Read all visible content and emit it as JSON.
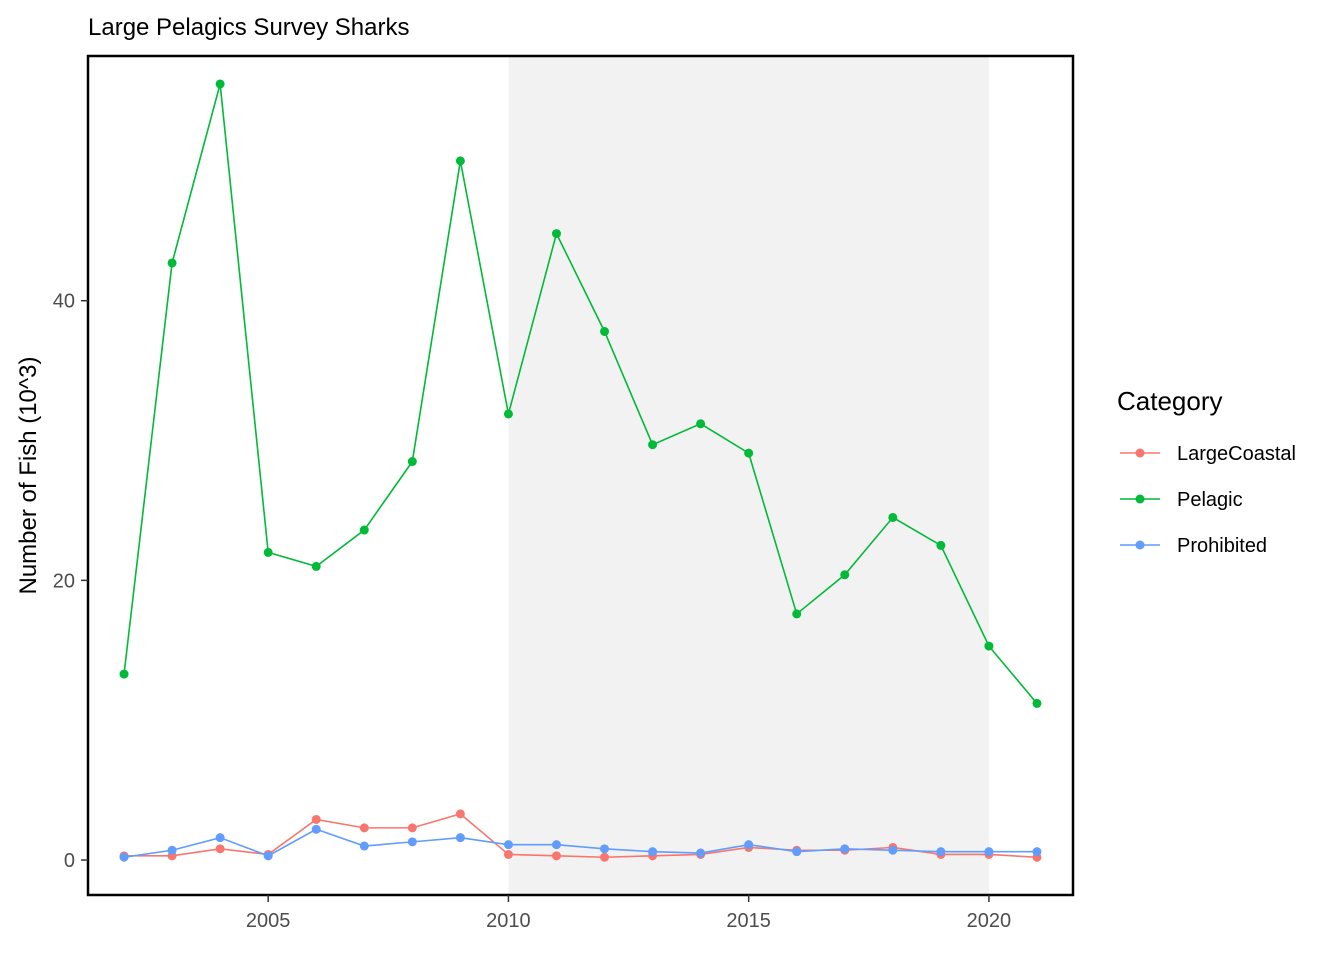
{
  "chart_data": {
    "type": "line",
    "title": "Large Pelagics Survey Sharks",
    "xlabel": "",
    "ylabel": "Number of Fish (10^3)",
    "x": [
      2002,
      2003,
      2004,
      2005,
      2006,
      2007,
      2008,
      2009,
      2010,
      2011,
      2012,
      2013,
      2014,
      2015,
      2016,
      2017,
      2018,
      2019,
      2020,
      2021
    ],
    "xlim": [
      2001.25,
      2021.75
    ],
    "ylim": [
      -2.5,
      57.5
    ],
    "xticks": [
      2005,
      2010,
      2015,
      2020
    ],
    "yticks": [
      0,
      20,
      40
    ],
    "shaded_region": {
      "x_start": 2010,
      "x_end": 2020,
      "color": "#f2f2f2"
    },
    "grid": false,
    "legend": {
      "title": "Category",
      "placement": "right"
    },
    "series": [
      {
        "name": "LargeCoastal",
        "color": "#F8766D",
        "values": [
          0.3,
          0.3,
          0.8,
          0.4,
          2.9,
          2.3,
          2.3,
          3.3,
          0.4,
          0.3,
          0.2,
          0.3,
          0.4,
          0.9,
          0.7,
          0.7,
          0.9,
          0.4,
          0.4,
          0.2
        ]
      },
      {
        "name": "Pelagic",
        "color": "#00BA38",
        "values": [
          13.3,
          42.7,
          55.5,
          22.0,
          21.0,
          23.6,
          28.5,
          50.0,
          31.9,
          44.8,
          37.8,
          29.7,
          31.2,
          29.1,
          17.6,
          20.4,
          24.5,
          22.5,
          15.3,
          11.2
        ]
      },
      {
        "name": "Prohibited",
        "color": "#619CFF",
        "values": [
          0.2,
          0.7,
          1.6,
          0.3,
          2.2,
          1.0,
          1.3,
          1.6,
          1.1,
          1.1,
          0.8,
          0.6,
          0.5,
          1.1,
          0.6,
          0.8,
          0.7,
          0.6,
          0.6,
          0.6
        ]
      }
    ]
  }
}
